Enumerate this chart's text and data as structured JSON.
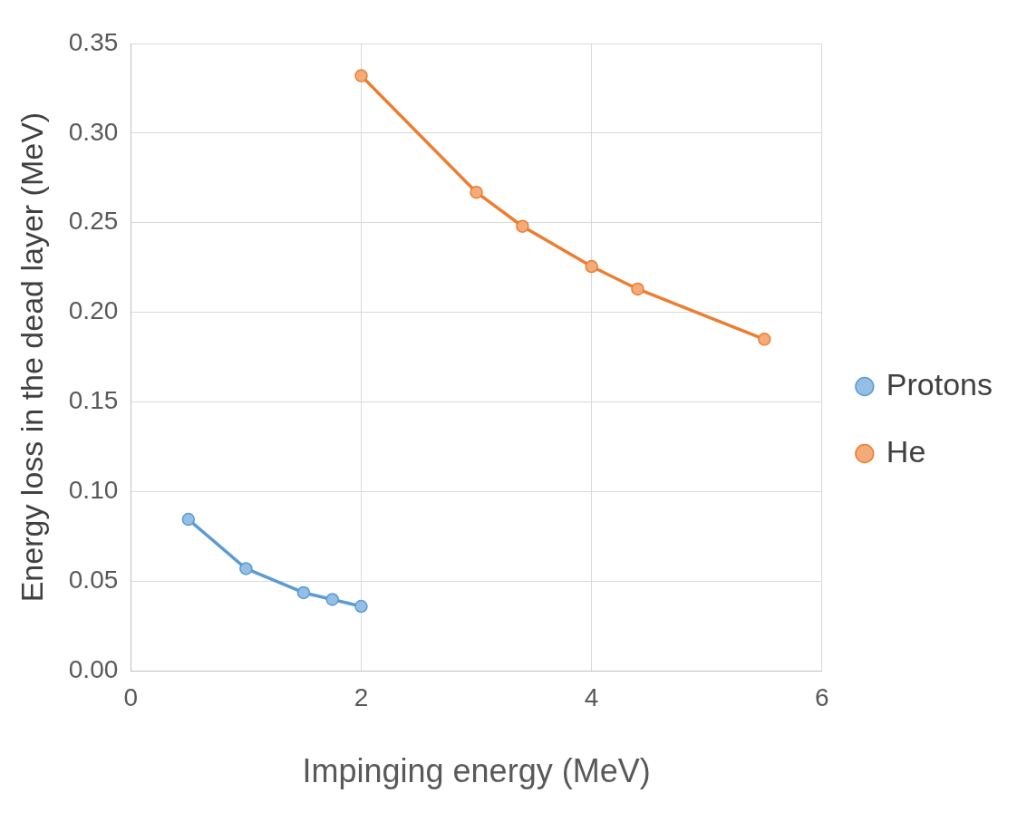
{
  "chart_data": {
    "type": "line",
    "xlabel": "Impinging energy (MeV)",
    "ylabel": "Energy loss in the dead layer (MeV)",
    "xlim": [
      0,
      6
    ],
    "xticks": [
      0,
      2,
      4,
      6
    ],
    "ylim": [
      0,
      0.35
    ],
    "yticks": [
      {
        "value": 0,
        "label": "0.00"
      },
      {
        "value": 0.05,
        "label": "0.05"
      },
      {
        "value": 0.1,
        "label": "0.10"
      },
      {
        "value": 0.15,
        "label": "0.15"
      },
      {
        "value": 0.2,
        "label": "0.20"
      },
      {
        "value": 0.25,
        "label": "0.25"
      },
      {
        "value": 0.3,
        "label": "0.30"
      },
      {
        "value": 0.35,
        "label": "0.35"
      }
    ],
    "grid": true,
    "legend": "right",
    "marker": "circle",
    "line_style": "solid",
    "series": [
      {
        "name": "Protons",
        "color": "#5b9bd5",
        "x": [
          0.5,
          1,
          1.5,
          1.75,
          2
        ],
        "values": [
          0.0845,
          0.057,
          0.0436,
          0.0398,
          0.036
        ]
      },
      {
        "name": "He",
        "color": "#ed7d31",
        "x": [
          2,
          3,
          3.4,
          4,
          4.4,
          5.5
        ],
        "values": [
          0.332,
          0.267,
          0.248,
          0.2256,
          0.213,
          0.185
        ]
      }
    ]
  }
}
